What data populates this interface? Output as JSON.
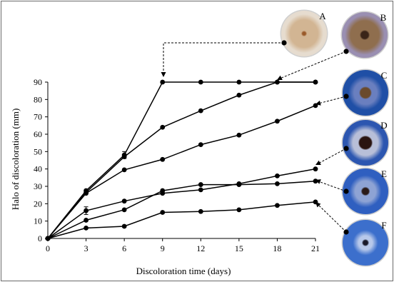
{
  "chart_data": {
    "type": "line",
    "xlabel": "Discoloration time (days)",
    "ylabel": "Halo of discoloration (mm)",
    "xlim": [
      0,
      21
    ],
    "ylim": [
      0,
      90
    ],
    "xticks": [
      "0",
      "3",
      "6",
      "9",
      "12",
      "15",
      "18",
      "21"
    ],
    "yticks": [
      "0",
      "10",
      "20",
      "30",
      "40",
      "50",
      "60",
      "70",
      "80",
      "90"
    ],
    "grid": false,
    "x": [
      0,
      3,
      6,
      9,
      12,
      15,
      18,
      21
    ],
    "series": [
      {
        "name": "A",
        "values": [
          0,
          27.5,
          48,
          90,
          90,
          90,
          90,
          90
        ]
      },
      {
        "name": "B",
        "values": [
          0,
          26.5,
          47,
          64,
          73.5,
          82.5,
          90,
          90
        ]
      },
      {
        "name": "C",
        "values": [
          0,
          26,
          39.5,
          45.5,
          54,
          59.5,
          67.5,
          76.5
        ]
      },
      {
        "name": "D",
        "values": [
          0,
          10.5,
          16.5,
          27.5,
          31,
          31,
          31.5,
          33
        ]
      },
      {
        "name": "E",
        "values": [
          0,
          16,
          21.5,
          26,
          28,
          31.5,
          36,
          40
        ]
      },
      {
        "name": "F",
        "values": [
          0,
          6,
          7,
          15,
          15.5,
          16.5,
          19,
          21
        ]
      }
    ],
    "dish_labels": [
      "A",
      "B",
      "C",
      "D",
      "E",
      "F"
    ]
  },
  "colors": {
    "line": "#000000",
    "frame": "#6b6b6b",
    "dish_colors": {
      "A": {
        "outer": "#e6dccf",
        "inner": "#d2b593",
        "core": "#9a5a2a"
      },
      "B": {
        "outer": "#9a8fb2",
        "inner": "#8f6e4e",
        "core": "#3a2418"
      },
      "C": {
        "outer": "#1f4fa6",
        "inner": "#6a7fbf",
        "core": "#6a4a2c"
      },
      "D": {
        "outer": "#2c56b0",
        "inner": "#b8bfd8",
        "core": "#2a1410"
      },
      "E": {
        "outer": "#2f5fc0",
        "inner": "#8ea3d4",
        "core": "#2a1a18"
      },
      "F": {
        "outer": "#3c6fcc",
        "inner": "#b7c8ea",
        "core": "#1a1a2a"
      }
    }
  }
}
